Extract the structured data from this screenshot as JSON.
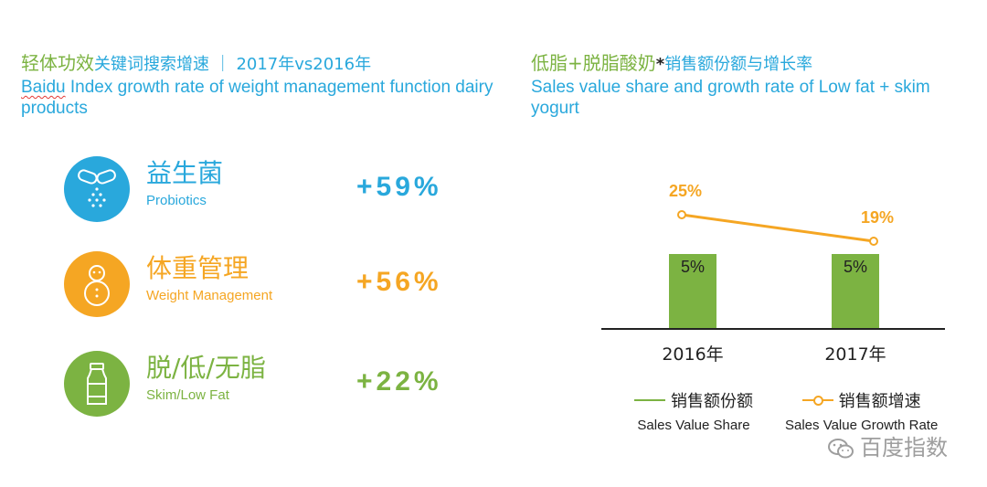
{
  "left": {
    "title_cn_green": "轻体功效",
    "title_cn_blue": "关键词搜索增速 ｜ 2017年vs2016年",
    "title_en_word": "Baidu",
    "title_en_rest": " Index growth rate of weight management function dairy products",
    "rows": [
      {
        "cn": "益生菌",
        "en": "Probiotics",
        "value": "+59%",
        "color": "#29a8dc",
        "icon": "probiotics-pills-icon"
      },
      {
        "cn": "体重管理",
        "en": "Weight Management",
        "value": "+56%",
        "color": "#f5a623",
        "icon": "snowman-weight-icon"
      },
      {
        "cn": "脱/低/无脂",
        "en": "Skim/Low Fat",
        "value": "+22%",
        "color": "#7cb342",
        "icon": "milk-bottle-icon"
      }
    ]
  },
  "right": {
    "title_cn_green": "低脂+脱脂酸奶",
    "title_cn_star": "*",
    "title_cn_blue": "销售额份额与增长率",
    "title_en": "Sales value share and growth rate of Low fat + skim yogurt"
  },
  "chart_data": {
    "type": "bar",
    "categories": [
      "2016年",
      "2017年"
    ],
    "series": [
      {
        "name": "销售额份额",
        "name_en": "Sales Value Share",
        "type": "bar",
        "values": [
          5,
          5
        ],
        "labels": [
          "5%",
          "5%"
        ],
        "color": "#7cb342"
      },
      {
        "name": "销售额增速",
        "name_en": "Sales Value Growth Rate",
        "type": "line",
        "values": [
          25,
          19
        ],
        "labels": [
          "25%",
          "19%"
        ],
        "color": "#f5a623"
      }
    ],
    "legend_position": "bottom",
    "grid": false
  },
  "watermark": "百度指数"
}
